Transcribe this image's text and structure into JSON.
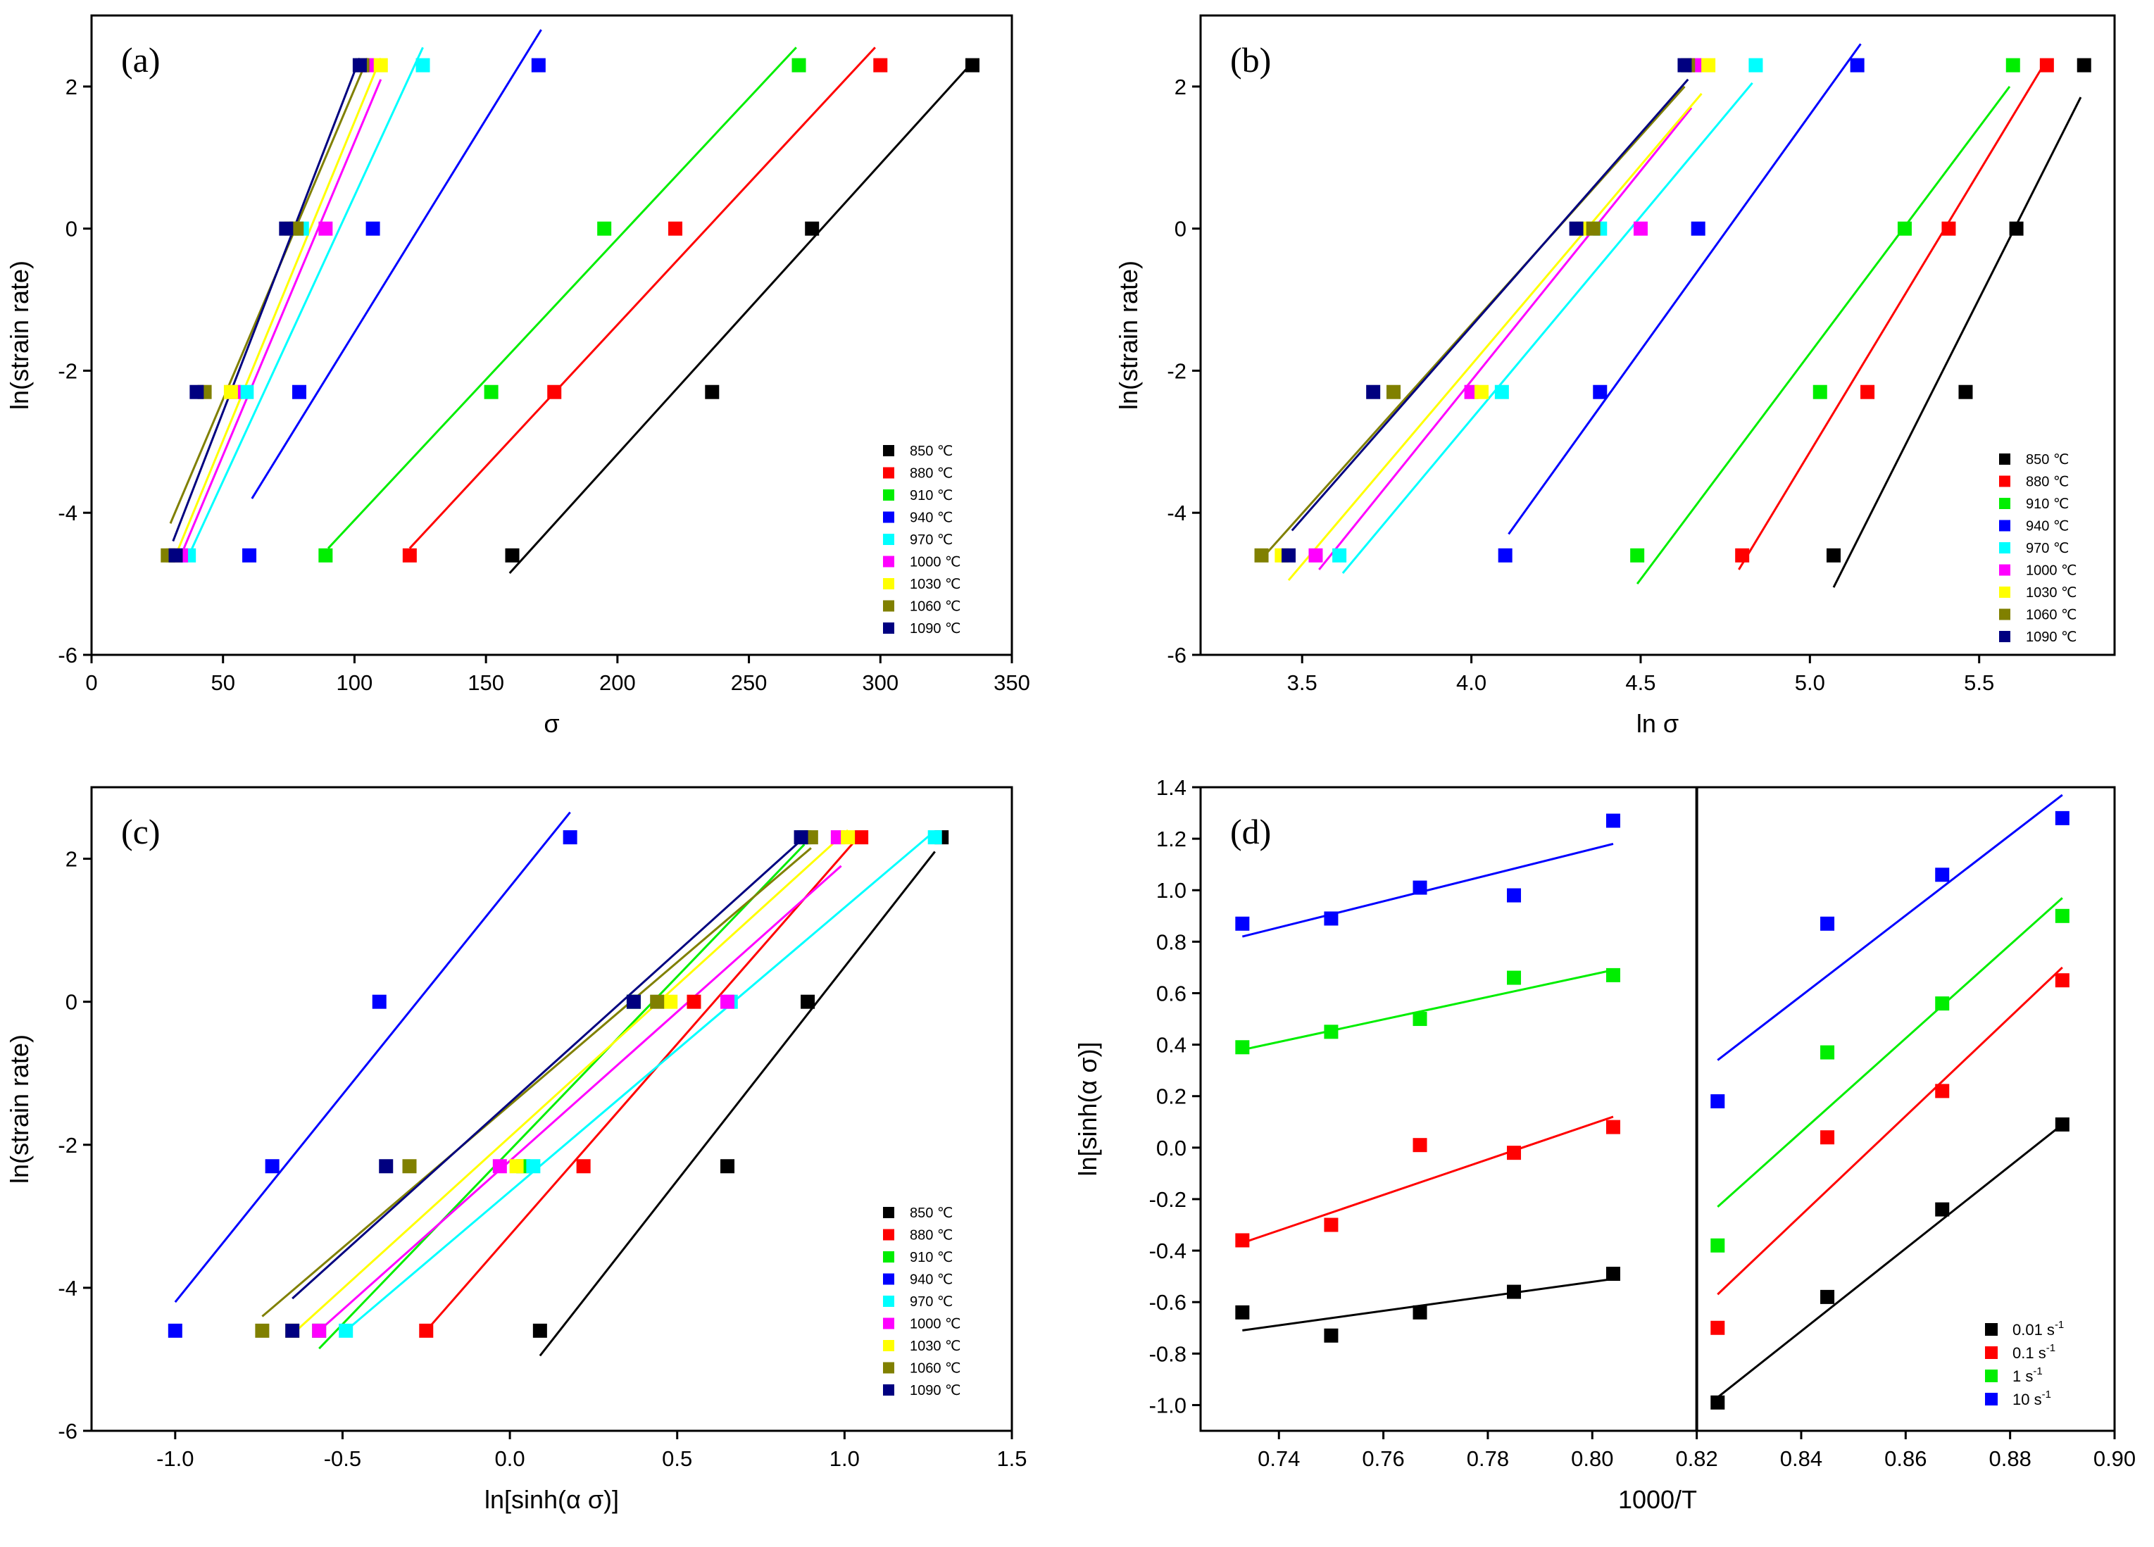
{
  "figure": {
    "chart_data": [
      {
        "type": "scatter",
        "panel_label": "(a)",
        "xlabel": "σ",
        "ylabel": "ln(strain rate)",
        "xlim": [
          0,
          350
        ],
        "ylim": [
          -6,
          3
        ],
        "xticks": [
          0,
          50,
          100,
          150,
          200,
          250,
          300,
          350
        ],
        "yticks": [
          -6,
          -4,
          -2,
          0,
          2
        ],
        "xtick_labels": [
          "0",
          "50",
          "100",
          "150",
          "200",
          "250",
          "300",
          "350"
        ],
        "ytick_labels": [
          "-6",
          "-4",
          "-2",
          "0",
          "2"
        ],
        "y_values": [
          -4.6,
          -2.3,
          0,
          2.3
        ],
        "series": [
          {
            "name": "850 ℃",
            "color": "#000000",
            "x": [
              160,
              236,
              274,
              335
            ],
            "fit": [
              [
                159,
                -4.85
              ],
              [
                334,
                2.3
              ]
            ]
          },
          {
            "name": "880 ℃",
            "color": "#ff0000",
            "x": [
              121,
              176,
              222,
              300
            ],
            "fit": [
              [
                121,
                -4.5
              ],
              [
                298,
                2.55
              ]
            ]
          },
          {
            "name": "910 ℃",
            "color": "#00ee00",
            "x": [
              89,
              152,
              195,
              269
            ],
            "fit": [
              [
                90,
                -4.5
              ],
              [
                268,
                2.55
              ]
            ]
          },
          {
            "name": "940 ℃",
            "color": "#0000ff",
            "x": [
              60,
              79,
              107,
              170
            ],
            "fit": [
              [
                61,
                -3.8
              ],
              [
                171,
                2.8
              ]
            ]
          },
          {
            "name": "970 ℃",
            "color": "#00ffff",
            "x": [
              37,
              59,
              80,
              126
            ],
            "fit": [
              [
                37,
                -4.6
              ],
              [
                126,
                2.55
              ]
            ]
          },
          {
            "name": "1000 ℃",
            "color": "#ff00ff",
            "x": [
              34,
              54,
              89,
              105
            ],
            "fit": [
              [
                34,
                -4.6
              ],
              [
                110,
                2.1
              ]
            ]
          },
          {
            "name": "1030 ℃",
            "color": "#ffff00",
            "x": [
              31,
              53,
              76,
              110
            ],
            "fit": [
              [
                32,
                -4.6
              ],
              [
                110,
                2.4
              ]
            ]
          },
          {
            "name": "1060 ℃",
            "color": "#808000",
            "x": [
              29,
              43,
              78,
              103
            ],
            "fit": [
              [
                30,
                -4.15
              ],
              [
                105,
                2.4
              ]
            ]
          },
          {
            "name": "1090 ℃",
            "color": "#000080",
            "x": [
              32,
              40,
              74,
              102
            ],
            "fit": [
              [
                31,
                -4.4
              ],
              [
                102,
                2.4
              ]
            ]
          }
        ]
      },
      {
        "type": "scatter",
        "panel_label": "(b)",
        "xlabel": "ln σ",
        "ylabel": "ln(strain rate)",
        "xlim": [
          3.2,
          5.9
        ],
        "ylim": [
          -6,
          3
        ],
        "xticks": [
          3.5,
          4.0,
          4.5,
          5.0,
          5.5
        ],
        "yticks": [
          -6,
          -4,
          -2,
          0,
          2
        ],
        "xtick_labels": [
          "3.5",
          "4.0",
          "4.5",
          "5.0",
          "5.5"
        ],
        "ytick_labels": [
          "-6",
          "-4",
          "-2",
          "0",
          "2"
        ],
        "y_values": [
          -4.6,
          -2.3,
          0,
          2.3
        ],
        "series": [
          {
            "name": "850 ℃",
            "color": "#000000",
            "x": [
              5.07,
              5.46,
              5.61,
              5.81
            ],
            "fit": [
              [
                5.07,
                -5.05
              ],
              [
                5.8,
                1.85
              ]
            ]
          },
          {
            "name": "880 ℃",
            "color": "#ff0000",
            "x": [
              4.8,
              5.17,
              5.41,
              5.7
            ],
            "fit": [
              [
                4.79,
                -4.8
              ],
              [
                5.69,
                2.3
              ]
            ]
          },
          {
            "name": "910 ℃",
            "color": "#00ee00",
            "x": [
              4.49,
              5.03,
              5.28,
              5.6
            ],
            "fit": [
              [
                4.49,
                -5.0
              ],
              [
                5.59,
                2.0
              ]
            ]
          },
          {
            "name": "940 ℃",
            "color": "#0000ff",
            "x": [
              4.1,
              4.38,
              4.67,
              5.14
            ],
            "fit": [
              [
                4.11,
                -4.3
              ],
              [
                5.15,
                2.6
              ]
            ]
          },
          {
            "name": "970 ℃",
            "color": "#00ffff",
            "x": [
              3.61,
              4.09,
              4.38,
              4.84
            ],
            "fit": [
              [
                3.62,
                -4.85
              ],
              [
                4.83,
                2.05
              ]
            ]
          },
          {
            "name": "1000 ℃",
            "color": "#ff00ff",
            "x": [
              3.54,
              4.0,
              4.5,
              4.66
            ],
            "fit": [
              [
                3.55,
                -4.8
              ],
              [
                4.65,
                1.7
              ]
            ]
          },
          {
            "name": "1030 ℃",
            "color": "#ffff00",
            "x": [
              3.44,
              4.03,
              4.33,
              4.7
            ],
            "fit": [
              [
                3.46,
                -4.95
              ],
              [
                4.68,
                1.9
              ]
            ]
          },
          {
            "name": "1060 ℃",
            "color": "#808000",
            "x": [
              3.38,
              3.77,
              4.36,
              4.64
            ],
            "fit": [
              [
                3.38,
                -4.65
              ],
              [
                4.63,
                2.0
              ]
            ]
          },
          {
            "name": "1090 ℃",
            "color": "#000080",
            "x": [
              3.46,
              3.71,
              4.31,
              4.63
            ],
            "fit": [
              [
                3.47,
                -4.25
              ],
              [
                4.64,
                2.1
              ]
            ]
          }
        ]
      },
      {
        "type": "scatter",
        "panel_label": "(c)",
        "xlabel": "ln[sinh(α σ)]",
        "ylabel": "ln(strain rate)",
        "xlim": [
          -1.25,
          1.5
        ],
        "ylim": [
          -6,
          3
        ],
        "xticks": [
          -1.0,
          -0.5,
          0.0,
          0.5,
          1.0,
          1.5
        ],
        "yticks": [
          -6,
          -4,
          -2,
          0,
          2
        ],
        "xtick_labels": [
          "-1.0",
          "-0.5",
          "0.0",
          "0.5",
          "1.0",
          "1.5"
        ],
        "ytick_labels": [
          "-6",
          "-4",
          "-2",
          "0",
          "2"
        ],
        "y_values": [
          -4.6,
          -2.3,
          0,
          2.3
        ],
        "series": [
          {
            "name": "850 ℃",
            "color": "#000000",
            "x": [
              0.09,
              0.65,
              0.89,
              1.29
            ],
            "fit": [
              [
                0.09,
                -4.95
              ],
              [
                1.27,
                2.1
              ]
            ]
          },
          {
            "name": "880 ℃",
            "color": "#ff0000",
            "x": [
              -0.25,
              0.22,
              0.55,
              1.05
            ],
            "fit": [
              [
                -0.25,
                -4.6
              ],
              [
                1.05,
                2.35
              ]
            ]
          },
          {
            "name": "910 ℃",
            "color": "#00ee00",
            "x": [
              -0.57,
              0.04,
              0.37,
              0.88
            ],
            "fit": [
              [
                -0.57,
                -4.85
              ],
              [
                0.88,
                2.2
              ]
            ]
          },
          {
            "name": "940 ℃",
            "color": "#0000ff",
            "x": [
              -1.0,
              -0.71,
              -0.39,
              0.18
            ],
            "fit": [
              [
                -1.0,
                -4.2
              ],
              [
                0.18,
                2.65
              ]
            ]
          },
          {
            "name": "970 ℃",
            "color": "#00ffff",
            "x": [
              -0.49,
              0.07,
              0.66,
              1.27
            ],
            "fit": [
              [
                -0.49,
                -4.6
              ],
              [
                1.26,
                2.35
              ]
            ]
          },
          {
            "name": "1000 ℃",
            "color": "#ff00ff",
            "x": [
              -0.57,
              -0.03,
              0.65,
              0.98
            ],
            "fit": [
              [
                -0.57,
                -4.6
              ],
              [
                0.99,
                1.9
              ]
            ]
          },
          {
            "name": "1030 ℃",
            "color": "#ffff00",
            "x": [
              -0.65,
              0.02,
              0.48,
              1.01
            ],
            "fit": [
              [
                -0.65,
                -4.65
              ],
              [
                1.01,
                2.4
              ]
            ]
          },
          {
            "name": "1060 ℃",
            "color": "#808000",
            "x": [
              -0.74,
              -0.3,
              0.44,
              0.9
            ],
            "fit": [
              [
                -0.74,
                -4.4
              ],
              [
                0.9,
                2.15
              ]
            ]
          },
          {
            "name": "1090 ℃",
            "color": "#000080",
            "x": [
              -0.65,
              -0.37,
              0.37,
              0.87
            ],
            "fit": [
              [
                -0.65,
                -4.15
              ],
              [
                0.88,
                2.3
              ]
            ]
          }
        ]
      },
      {
        "type": "scatter",
        "panel_label": "(d)",
        "xlabel": "1000/T",
        "ylabel": "ln[sinh(α σ)]",
        "xlim": [
          0.725,
          0.9
        ],
        "ylim": [
          -1.1,
          1.4
        ],
        "divider_x": 0.82,
        "xticks": [
          0.74,
          0.76,
          0.78,
          0.8,
          0.82,
          0.84,
          0.86,
          0.88,
          0.9
        ],
        "yticks": [
          -1.0,
          -0.8,
          -0.6,
          -0.4,
          -0.2,
          0.0,
          0.2,
          0.4,
          0.6,
          0.8,
          1.0,
          1.2,
          1.4
        ],
        "xtick_labels": [
          "0.74",
          "0.76",
          "0.78",
          "0.80",
          "0.82",
          "0.84",
          "0.86",
          "0.88",
          "0.90"
        ],
        "ytick_labels": [
          "-1.0",
          "-0.8",
          "-0.6",
          "-0.4",
          "-0.2",
          "0.0",
          "0.2",
          "0.4",
          "0.6",
          "0.8",
          "1.0",
          "1.2",
          "1.4"
        ],
        "series": [
          {
            "name": "0.01 s",
            "sup": "-1",
            "color": "#000000",
            "left_x": [
              0.733,
              0.75,
              0.767,
              0.785,
              0.804
            ],
            "left_y": [
              -0.64,
              -0.73,
              -0.64,
              -0.56,
              -0.49
            ],
            "left_fit": [
              [
                0.733,
                -0.71
              ],
              [
                0.804,
                -0.51
              ]
            ],
            "right_x": [
              0.824,
              0.845,
              0.867,
              0.89
            ],
            "right_y": [
              -0.99,
              -0.58,
              -0.24,
              0.09
            ],
            "right_fit": [
              [
                0.824,
                -0.97
              ],
              [
                0.89,
                0.09
              ]
            ]
          },
          {
            "name": "0.1 s",
            "sup": "-1",
            "color": "#ff0000",
            "left_x": [
              0.733,
              0.75,
              0.767,
              0.785,
              0.804
            ],
            "left_y": [
              -0.36,
              -0.3,
              0.01,
              -0.02,
              0.08
            ],
            "left_fit": [
              [
                0.733,
                -0.37
              ],
              [
                0.804,
                0.12
              ]
            ],
            "right_x": [
              0.824,
              0.845,
              0.867,
              0.89
            ],
            "right_y": [
              -0.7,
              0.04,
              0.22,
              0.65
            ],
            "right_fit": [
              [
                0.824,
                -0.57
              ],
              [
                0.89,
                0.7
              ]
            ]
          },
          {
            "name": "1 s",
            "sup": "-1",
            "color": "#00ee00",
            "left_x": [
              0.733,
              0.75,
              0.767,
              0.785,
              0.804
            ],
            "left_y": [
              0.39,
              0.45,
              0.5,
              0.66,
              0.67
            ],
            "left_fit": [
              [
                0.733,
                0.38
              ],
              [
                0.804,
                0.69
              ]
            ],
            "right_x": [
              0.824,
              0.845,
              0.867,
              0.89
            ],
            "right_y": [
              -0.38,
              0.37,
              0.56,
              0.9
            ],
            "right_fit": [
              [
                0.824,
                -0.23
              ],
              [
                0.89,
                0.97
              ]
            ]
          },
          {
            "name": "10 s",
            "sup": "-1",
            "color": "#0000ff",
            "left_x": [
              0.733,
              0.75,
              0.767,
              0.785,
              0.804
            ],
            "left_y": [
              0.87,
              0.89,
              1.01,
              0.98,
              1.27
            ],
            "left_fit": [
              [
                0.733,
                0.82
              ],
              [
                0.804,
                1.18
              ]
            ],
            "right_x": [
              0.824,
              0.845,
              0.867,
              0.89
            ],
            "right_y": [
              0.18,
              0.87,
              1.06,
              1.28
            ],
            "right_fit": [
              [
                0.824,
                0.34
              ],
              [
                0.89,
                1.37
              ]
            ]
          }
        ]
      }
    ]
  }
}
